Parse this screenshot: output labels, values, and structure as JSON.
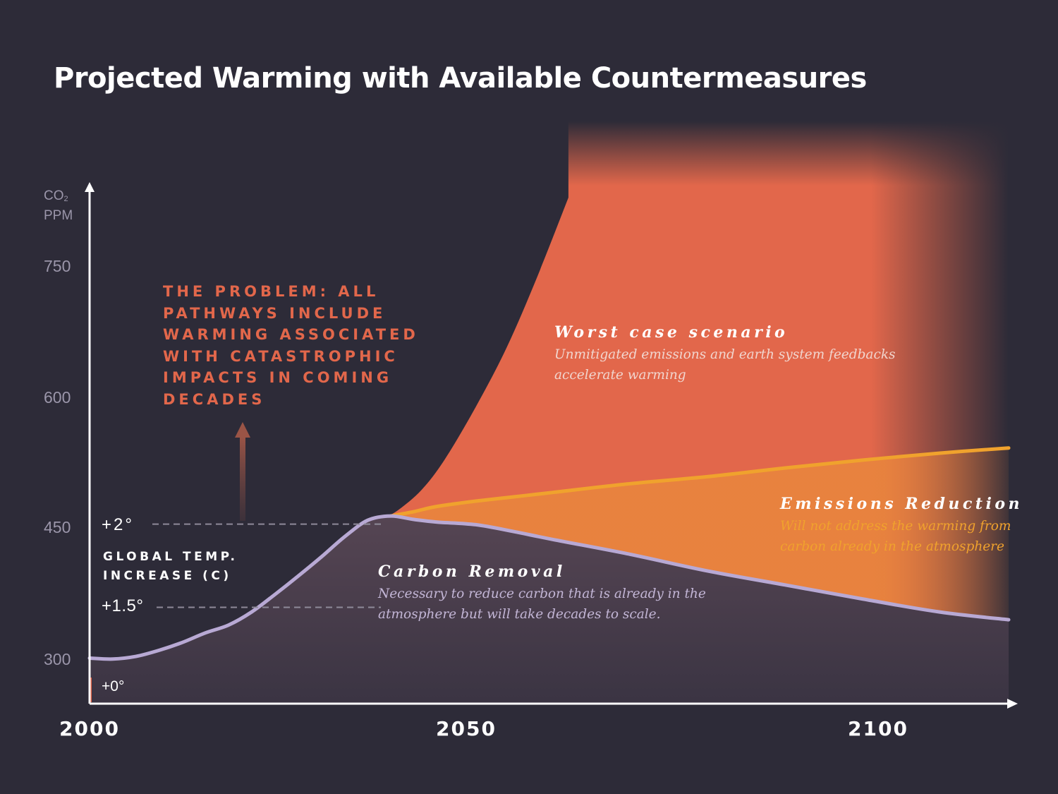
{
  "title": "Projected Warming with Available Countermeasures",
  "chart_data": {
    "type": "area",
    "title": "Projected Warming with Available Countermeasures",
    "ylabel_line1": "CO",
    "ylabel_sub": "2",
    "ylabel_line2": "PPM",
    "yticks": [
      "750",
      "600",
      "450",
      "300"
    ],
    "xticks": [
      "2000",
      "2050",
      "2100"
    ],
    "xlim": [
      2000,
      2119
    ],
    "ylim": [
      250,
      820
    ],
    "temperature_markers": [
      {
        "label": "+2°",
        "ppm": 450
      },
      {
        "label": "+1.5°",
        "ppm": 357
      },
      {
        "label": "+0°",
        "ppm": 270
      }
    ],
    "temperature_axis_label": "GLOBAL TEMP. INCREASE (C)",
    "series": [
      {
        "name": "Carbon Removal",
        "color": "#b8a9d4",
        "points": [
          [
            2000,
            302
          ],
          [
            2003,
            301
          ],
          [
            2006,
            304
          ],
          [
            2009,
            311
          ],
          [
            2012,
            320
          ],
          [
            2015,
            331
          ],
          [
            2018,
            340
          ],
          [
            2021,
            355
          ],
          [
            2024,
            375
          ],
          [
            2027,
            396
          ],
          [
            2030,
            418
          ],
          [
            2033,
            441
          ],
          [
            2036,
            460
          ],
          [
            2039,
            465
          ],
          [
            2042,
            461
          ],
          [
            2045,
            458
          ],
          [
            2050,
            455
          ],
          [
            2055,
            447
          ],
          [
            2060,
            438
          ],
          [
            2070,
            421
          ],
          [
            2080,
            402
          ],
          [
            2090,
            386
          ],
          [
            2100,
            370
          ],
          [
            2110,
            355
          ],
          [
            2119,
            346
          ]
        ]
      },
      {
        "name": "Emissions Reduction",
        "color": "#f0a22d",
        "points": [
          [
            2039,
            465
          ],
          [
            2042,
            470
          ],
          [
            2045,
            476
          ],
          [
            2050,
            482
          ],
          [
            2055,
            487
          ],
          [
            2060,
            492
          ],
          [
            2070,
            502
          ],
          [
            2080,
            510
          ],
          [
            2090,
            520
          ],
          [
            2100,
            529
          ],
          [
            2110,
            537
          ],
          [
            2119,
            543
          ]
        ]
      },
      {
        "name": "Worst case scenario",
        "color": "#e2674b",
        "points": [
          [
            2038,
            462
          ],
          [
            2040,
            472
          ],
          [
            2043,
            495
          ],
          [
            2046,
            530
          ],
          [
            2050,
            590
          ],
          [
            2054,
            658
          ],
          [
            2058,
            740
          ],
          [
            2062,
            830
          ]
        ]
      }
    ]
  },
  "problem_text": "THE PROBLEM: ALL PATHWAYS INCLUDE WARMING ASSOCIATED WITH CATASTROPHIC IMPACTS IN COMING DECADES",
  "annotations": {
    "worst": {
      "head": "Worst case scenario",
      "line1": "Unmitigated emissions and earth system feedbacks",
      "line2": "accelerate warming"
    },
    "emissions": {
      "head": "Emissions Reduction",
      "line1": "Will not address the warming from",
      "line2": "carbon already in the atmosphere"
    },
    "removal": {
      "head": "Carbon Removal",
      "line1": "Necessary to reduce carbon that is already in the",
      "line2": "atmosphere but will take decades to scale."
    }
  },
  "colors": {
    "background": "#2d2b38",
    "worst": "#e2674b",
    "emissions": "#f0a22d",
    "removal": "#b8a9d4",
    "axis": "#ffffff"
  }
}
